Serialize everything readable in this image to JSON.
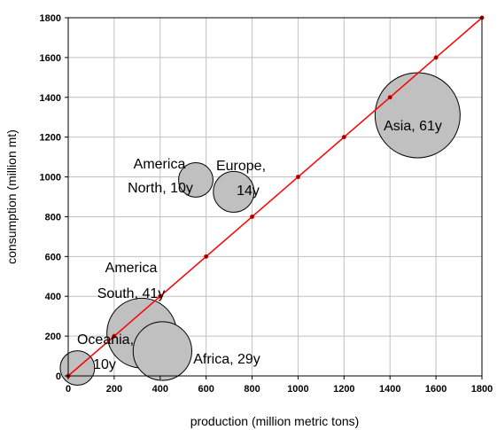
{
  "chart_data": {
    "type": "scatter",
    "subtype": "bubble",
    "title": "",
    "xlabel": "production (million metric tons)",
    "ylabel": "consumption (million mt)",
    "xlim": [
      0,
      1800
    ],
    "ylim": [
      0,
      1800
    ],
    "xticks": [
      0,
      200,
      400,
      600,
      800,
      1000,
      1200,
      1400,
      1600,
      1800
    ],
    "yticks": [
      0,
      200,
      400,
      600,
      800,
      1000,
      1200,
      1400,
      1600,
      1800
    ],
    "grid": true,
    "legend": "none",
    "colors": {
      "bubble_fill": "#c0c0c0",
      "bubble_stroke": "#000000",
      "diagonal": "#ff0000",
      "grid": "#c0c0c0"
    },
    "bubbles": [
      {
        "label_lines": [
          "Asia, 61y"
        ],
        "x": 1520,
        "y": 1310,
        "size": 61
      },
      {
        "label_lines": [
          "America",
          "North, 10y"
        ],
        "x": 555,
        "y": 985,
        "size": 10
      },
      {
        "label_lines": [
          "Europe,",
          "14y"
        ],
        "x": 720,
        "y": 925,
        "size": 14
      },
      {
        "label_lines": [
          "America",
          "South, 41y"
        ],
        "x": 320,
        "y": 215,
        "size": 41
      },
      {
        "label_lines": [
          "Africa, 29y"
        ],
        "x": 410,
        "y": 125,
        "size": 29
      },
      {
        "label_lines": [
          "Oceania,",
          "10y"
        ],
        "x": 40,
        "y": 40,
        "size": 10
      }
    ],
    "reference_line": {
      "type": "y=x",
      "points": [
        [
          0,
          0
        ],
        [
          200,
          200
        ],
        [
          400,
          400
        ],
        [
          600,
          600
        ],
        [
          800,
          800
        ],
        [
          1000,
          1000
        ],
        [
          1200,
          1200
        ],
        [
          1400,
          1400
        ],
        [
          1600,
          1600
        ],
        [
          1800,
          1800
        ]
      ]
    }
  }
}
